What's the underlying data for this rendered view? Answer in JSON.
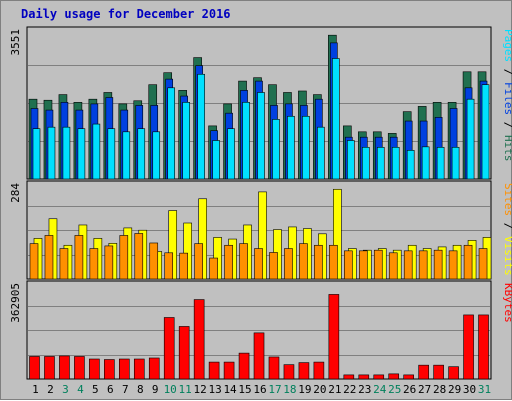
{
  "chart_data": {
    "type": "bar",
    "title": "Daily usage for December 2016",
    "colors": {
      "title": "#0000c0",
      "pages": "#00e0ff",
      "files": "#0040e0",
      "hits": "#207050",
      "visits": "#ffff00",
      "sites": "#ff9000",
      "kbytes": "#ff0000",
      "weekend_day": "#00805c",
      "weekday": "#000000",
      "panel_bg": "#c0c0c0",
      "grid": "#808080"
    },
    "days": [
      "1",
      "2",
      "3",
      "4",
      "5",
      "6",
      "7",
      "8",
      "9",
      "10",
      "11",
      "12",
      "13",
      "14",
      "15",
      "16",
      "17",
      "18",
      "19",
      "20",
      "21",
      "22",
      "23",
      "24",
      "25",
      "26",
      "27",
      "28",
      "29",
      "30",
      "31"
    ],
    "weekend_days": [
      3,
      4,
      10,
      11,
      17,
      18,
      24,
      25,
      31
    ],
    "panel_top": {
      "ymax_label": "3551",
      "ymax": 3551,
      "right_label": {
        "pages": "Pages",
        "sep1": " / ",
        "files": "Files",
        "sep2": " / ",
        "hits": "Hits"
      },
      "series": [
        {
          "name": "Hits",
          "values": [
            1928,
            1903,
            2039,
            1852,
            1928,
            2090,
            1814,
            1890,
            2278,
            2568,
            2141,
            2933,
            1283,
            1814,
            2365,
            2447,
            2278,
            2090,
            2126,
            2039,
            3474,
            1283,
            1140,
            1140,
            1102,
            1627,
            1754,
            1852,
            1852,
            2590,
            2590
          ]
        },
        {
          "name": "Files",
          "values": [
            1703,
            1665,
            1852,
            1665,
            1814,
            1969,
            1665,
            1778,
            1778,
            2413,
            2004,
            2738,
            1167,
            1590,
            2141,
            2365,
            1778,
            1815,
            1778,
            1928,
            3288,
            1010,
            1010,
            1010,
            1010,
            1400,
            1400,
            1490,
            1704,
            2203,
            2365
          ]
        },
        {
          "name": "Pages",
          "values": [
            1215,
            1252,
            1252,
            1215,
            1327,
            1215,
            1140,
            1215,
            1140,
            2203,
            1852,
            2530,
            930,
            1215,
            1853,
            2090,
            1440,
            1515,
            1515,
            1252,
            2911,
            930,
            766,
            766,
            766,
            692,
            777,
            766,
            766,
            1928,
            2278
          ]
        }
      ]
    },
    "panel_mid": {
      "ymax_label": "284",
      "ymax": 284,
      "right_label": {
        "sites": "Sites",
        "sep1": " / ",
        "visits": "Visits"
      },
      "series": [
        {
          "name": "Visits",
          "values": [
            124,
            184,
            103,
            165,
            124,
            109,
            156,
            149,
            84,
            209,
            171,
            245,
            127,
            122,
            165,
            266,
            151,
            159,
            154,
            138,
            274,
            93,
            88,
            93,
            88,
            103,
            93,
            98,
            103,
            118,
            127
          ]
        },
        {
          "name": "Sites",
          "values": [
            108,
            133,
            93,
            133,
            93,
            101,
            133,
            139,
            110,
            80,
            79,
            108,
            64,
            103,
            108,
            93,
            81,
            93,
            108,
            103,
            103,
            86,
            86,
            88,
            80,
            86,
            86,
            88,
            86,
            103,
            93
          ]
        }
      ]
    },
    "panel_bot": {
      "ymax_label": "362905",
      "ymax": 362905,
      "right_label": {
        "kbytes": "KBytes"
      },
      "series": [
        {
          "name": "KBytes",
          "values": [
            88000,
            88000,
            90000,
            88000,
            78000,
            76000,
            78000,
            78000,
            82000,
            240000,
            205000,
            310000,
            66000,
            66000,
            101000,
            180000,
            86000,
            56000,
            64000,
            66000,
            330000,
            16000,
            16000,
            16000,
            20000,
            16000,
            54000,
            54000,
            48000,
            250000,
            250000
          ]
        }
      ]
    }
  }
}
